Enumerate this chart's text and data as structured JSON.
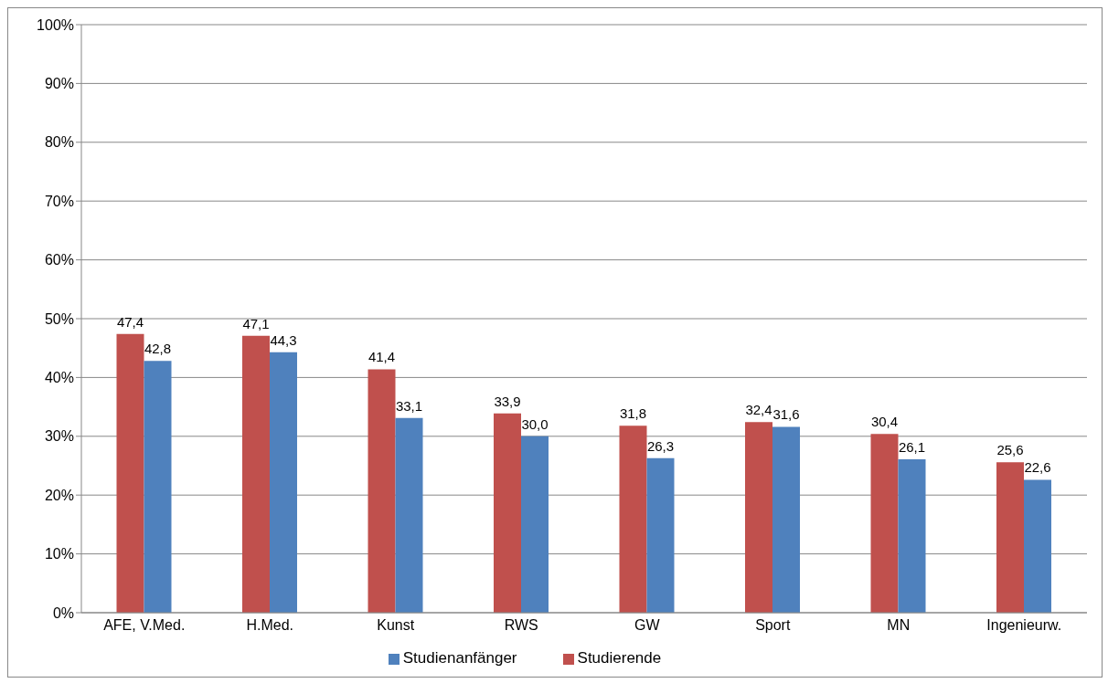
{
  "chart_data": {
    "type": "bar",
    "categories": [
      "AFE, V.Med.",
      "H.Med.",
      "Kunst",
      "RWS",
      "GW",
      "Sport",
      "MN",
      "Ingenieurw."
    ],
    "series": [
      {
        "name": "Studierende",
        "color": "#c0504d",
        "values": [
          47.4,
          47.1,
          41.4,
          33.9,
          31.8,
          32.4,
          30.4,
          25.6
        ],
        "value_labels": [
          "47,4",
          "47,1",
          "41,4",
          "33,9",
          "31,8",
          "32,4",
          "30,4",
          "25,6"
        ]
      },
      {
        "name": "Studienanfänger",
        "color": "#4f81bd",
        "values": [
          42.8,
          44.3,
          33.1,
          30.0,
          26.3,
          31.6,
          26.1,
          22.6
        ],
        "value_labels": [
          "42,8",
          "44,3",
          "33,1",
          "30,0",
          "26,3",
          "31,6",
          "26,1",
          "22,6"
        ]
      }
    ],
    "ylim": [
      0,
      100
    ],
    "yticks": [
      {
        "value": 0,
        "label": "0%"
      },
      {
        "value": 10,
        "label": "10%"
      },
      {
        "value": 20,
        "label": "20%"
      },
      {
        "value": 30,
        "label": "30%"
      },
      {
        "value": 40,
        "label": "40%"
      },
      {
        "value": 50,
        "label": "50%"
      },
      {
        "value": 60,
        "label": "60%"
      },
      {
        "value": 70,
        "label": "70%"
      },
      {
        "value": 80,
        "label": "80%"
      },
      {
        "value": 90,
        "label": "90%"
      },
      {
        "value": 100,
        "label": "100%"
      }
    ],
    "grid": "y",
    "legend": "bottom"
  }
}
